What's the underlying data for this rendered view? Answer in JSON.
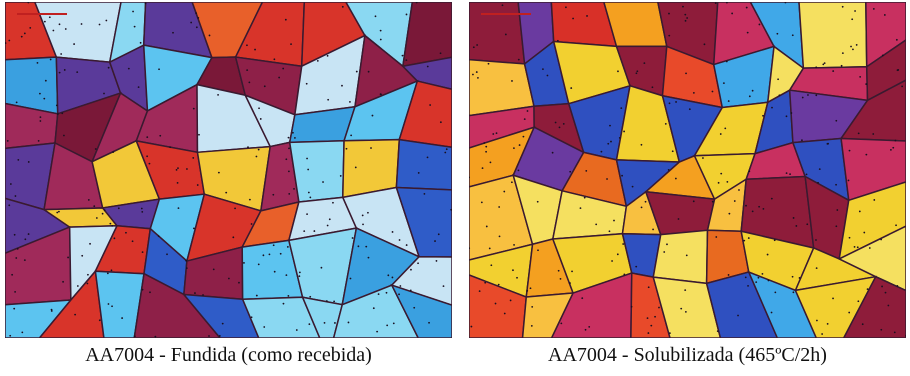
{
  "figure": {
    "panels": [
      {
        "caption": "AA7004 - Fundida (como recebida)"
      },
      {
        "caption": "AA7004 - Solubilizada (465ºC/2h)"
      }
    ]
  }
}
